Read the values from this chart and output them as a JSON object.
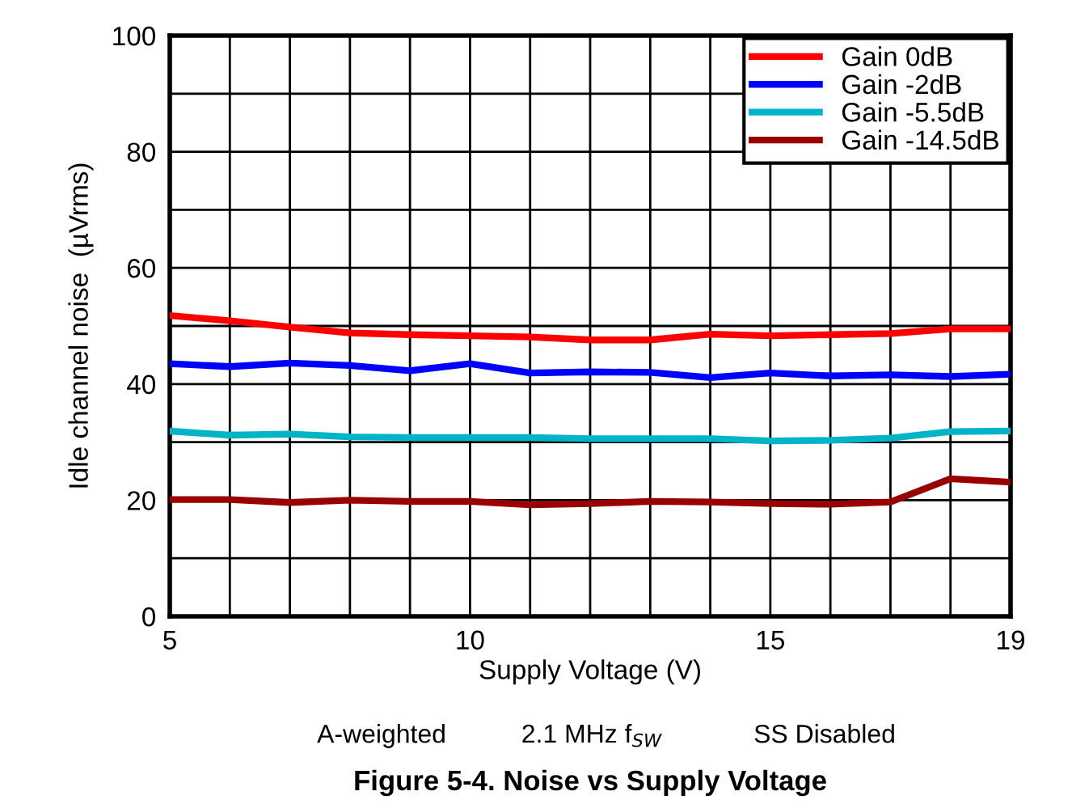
{
  "chart_data": {
    "type": "line",
    "title": "Figure 5-4. Noise vs Supply Voltage",
    "xlabel": "Supply Voltage (V)",
    "ylabel": "Idle channel noise  (µVrms)",
    "annotations": [
      "A-weighted",
      "2.1 MHz f$_{SW}$",
      "SS Disabled"
    ],
    "x": [
      5,
      6,
      7,
      8,
      9,
      10,
      11,
      12,
      13,
      14,
      15,
      16,
      17,
      18,
      19
    ],
    "series": [
      {
        "name": "Gain 0dB",
        "color": "#ff0000",
        "values": [
          51.8,
          50.9,
          49.8,
          48.8,
          48.5,
          48.3,
          48.1,
          47.6,
          47.6,
          48.6,
          48.3,
          48.5,
          48.7,
          49.5,
          49.5
        ]
      },
      {
        "name": "Gain -2dB",
        "color": "#0000ff",
        "values": [
          43.5,
          43.0,
          43.6,
          43.2,
          42.3,
          43.5,
          41.9,
          42.1,
          42.0,
          41.1,
          41.9,
          41.4,
          41.6,
          41.3,
          41.7
        ]
      },
      {
        "name": "Gain -5.5dB",
        "color": "#00b4c8",
        "values": [
          31.9,
          31.2,
          31.4,
          30.9,
          30.8,
          30.8,
          30.8,
          30.6,
          30.6,
          30.6,
          30.2,
          30.3,
          30.7,
          31.8,
          31.9
        ]
      },
      {
        "name": "Gain -14.5dB",
        "color": "#990000",
        "values": [
          20.1,
          20.1,
          19.6,
          20.0,
          19.8,
          19.8,
          19.2,
          19.4,
          19.8,
          19.7,
          19.4,
          19.3,
          19.7,
          23.7,
          23.1
        ]
      }
    ],
    "xlim": [
      5,
      19
    ],
    "ylim": [
      0,
      100
    ],
    "xticks": [
      5,
      {
        "value": 6,
        "label": null
      },
      {
        "value": 7,
        "label": null
      },
      {
        "value": 8,
        "label": null
      },
      {
        "value": 9,
        "label": null
      },
      10,
      {
        "value": 11,
        "label": null
      },
      {
        "value": 12,
        "label": null
      },
      {
        "value": 13,
        "label": null
      },
      {
        "value": 14,
        "label": null
      },
      15,
      {
        "value": 16,
        "label": null
      },
      {
        "value": 17,
        "label": null
      },
      {
        "value": 18,
        "label": null
      },
      19
    ],
    "yticks": [
      0,
      {
        "value": 10,
        "label": null
      },
      20,
      {
        "value": 30,
        "label": null
      },
      40,
      {
        "value": 50,
        "label": null
      },
      60,
      {
        "value": 70,
        "label": null
      },
      80,
      {
        "value": 90,
        "label": null
      },
      100
    ],
    "grid": true,
    "legend": "top right",
    "marker": "none",
    "line_style": "solid"
  }
}
